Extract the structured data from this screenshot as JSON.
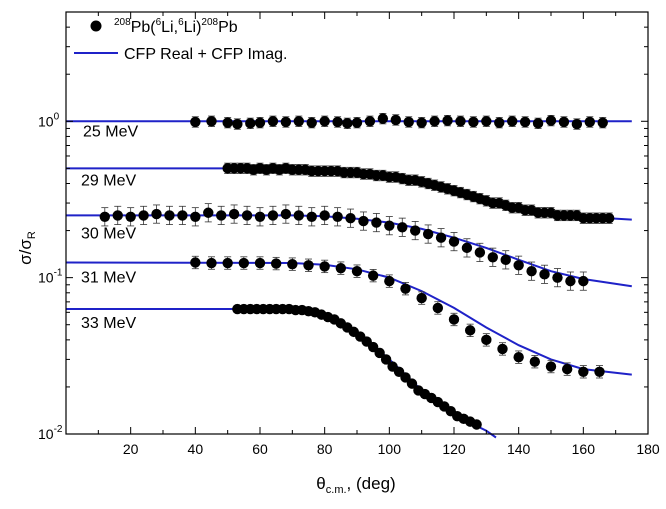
{
  "chart_data": {
    "type": "scatter",
    "xlabel": "θc.m., (deg)",
    "xlabel_main": "θ",
    "xlabel_sub": "c.m.",
    "xlabel_rest": ", (deg)",
    "ylabel_main": "σ/σ",
    "ylabel_sub": "R",
    "x_scale": "linear",
    "y_scale": "log",
    "xlim": [
      0,
      180
    ],
    "ylim": [
      0.01,
      5
    ],
    "x_ticks": [
      20,
      40,
      60,
      80,
      100,
      120,
      140,
      160,
      180
    ],
    "x_tick_labels": [
      "20",
      "40",
      "60",
      "80",
      "100",
      "120",
      "140",
      "160",
      "180"
    ],
    "y_tick_labels": [
      {
        "base": "10",
        "exp": "0",
        "value": 1
      },
      {
        "base": "10",
        "exp": "-1",
        "value": 0.1
      },
      {
        "base": "10",
        "exp": "-2",
        "value": 0.01
      }
    ],
    "legend": {
      "placement": "top-left",
      "data_label": {
        "sup1": "208",
        "a": "Pb(",
        "sup2": "6",
        "b": "Li,",
        "sup3": "6",
        "c": "Li)",
        "sup4": "208",
        "d": "Pb"
      },
      "fit_label": "CFP Real + CFP Imag."
    },
    "colors": {
      "data": "#000000",
      "fit": "#1f22c8",
      "errorbar": "#333333"
    },
    "series": [
      {
        "name": "25 MeV",
        "x": [
          40,
          45,
          50,
          53,
          57,
          60,
          64,
          68,
          72,
          76,
          80,
          84,
          87,
          90,
          94,
          98,
          102,
          106,
          110,
          114,
          118,
          122,
          126,
          130,
          134,
          138,
          142,
          146,
          150,
          154,
          158,
          162,
          166
        ],
        "y": [
          0.99,
          1.0,
          0.98,
          0.96,
          0.97,
          0.98,
          1.0,
          0.99,
          1.0,
          0.98,
          1.0,
          0.99,
          0.97,
          0.98,
          1.0,
          1.04,
          1.02,
          0.99,
          0.98,
          1.0,
          1.01,
          1.0,
          0.99,
          1.0,
          0.98,
          1.0,
          0.99,
          0.97,
          1.01,
          0.99,
          0.96,
          0.99,
          0.98
        ],
        "fit_x": [
          0,
          175
        ],
        "fit_y": [
          1.0,
          1.0
        ]
      },
      {
        "name": "29 MeV",
        "x": [
          50,
          52,
          54,
          56,
          58,
          60,
          62,
          64,
          66,
          68,
          70,
          72,
          74,
          76,
          78,
          80,
          82,
          84,
          86,
          88,
          90,
          92,
          94,
          96,
          98,
          100,
          102,
          104,
          106,
          108,
          110,
          112,
          114,
          116,
          118,
          120,
          122,
          124,
          126,
          128,
          130,
          132,
          134,
          136,
          138,
          140,
          142,
          144,
          146,
          148,
          150,
          152,
          154,
          156,
          158,
          160,
          162,
          164,
          166,
          168
        ],
        "y": [
          0.5,
          0.5,
          0.5,
          0.5,
          0.49,
          0.5,
          0.49,
          0.5,
          0.49,
          0.5,
          0.49,
          0.49,
          0.49,
          0.48,
          0.48,
          0.48,
          0.48,
          0.48,
          0.47,
          0.47,
          0.47,
          0.46,
          0.46,
          0.45,
          0.45,
          0.44,
          0.44,
          0.43,
          0.42,
          0.42,
          0.41,
          0.4,
          0.39,
          0.38,
          0.37,
          0.36,
          0.35,
          0.34,
          0.33,
          0.32,
          0.31,
          0.3,
          0.3,
          0.29,
          0.28,
          0.28,
          0.27,
          0.27,
          0.26,
          0.26,
          0.26,
          0.25,
          0.25,
          0.25,
          0.25,
          0.24,
          0.24,
          0.24,
          0.24,
          0.24
        ],
        "fit_x": [
          0,
          55,
          70,
          80,
          90,
          100,
          110,
          120,
          130,
          140,
          150,
          160,
          175
        ],
        "fit_y": [
          0.5,
          0.5,
          0.495,
          0.485,
          0.47,
          0.45,
          0.41,
          0.36,
          0.315,
          0.28,
          0.26,
          0.245,
          0.235
        ],
        "error": 0.05
      },
      {
        "name": "30 MeV",
        "x": [
          12,
          16,
          20,
          24,
          28,
          32,
          36,
          40,
          44,
          48,
          52,
          56,
          60,
          64,
          68,
          72,
          76,
          80,
          84,
          88,
          92,
          96,
          100,
          104,
          108,
          112,
          116,
          120,
          124,
          128,
          132,
          136,
          140,
          144,
          148,
          152,
          156,
          160
        ],
        "y": [
          0.245,
          0.25,
          0.245,
          0.25,
          0.255,
          0.25,
          0.25,
          0.245,
          0.26,
          0.25,
          0.255,
          0.25,
          0.245,
          0.25,
          0.255,
          0.25,
          0.245,
          0.25,
          0.245,
          0.24,
          0.23,
          0.225,
          0.215,
          0.21,
          0.2,
          0.19,
          0.18,
          0.17,
          0.155,
          0.145,
          0.135,
          0.13,
          0.12,
          0.11,
          0.105,
          0.1,
          0.095,
          0.095
        ],
        "fit_x": [
          0,
          70,
          80,
          90,
          100,
          110,
          120,
          130,
          140,
          150,
          160,
          175
        ],
        "fit_y": [
          0.25,
          0.25,
          0.247,
          0.238,
          0.225,
          0.205,
          0.18,
          0.155,
          0.13,
          0.11,
          0.098,
          0.088
        ],
        "error": 0.09
      },
      {
        "name": "31 MeV",
        "x": [
          40,
          45,
          50,
          55,
          60,
          65,
          70,
          75,
          80,
          85,
          90,
          95,
          100,
          105,
          110,
          115,
          120,
          125,
          130,
          135,
          140,
          145,
          150,
          155,
          160,
          165
        ],
        "y": [
          0.125,
          0.124,
          0.124,
          0.124,
          0.124,
          0.123,
          0.122,
          0.12,
          0.118,
          0.115,
          0.11,
          0.103,
          0.095,
          0.085,
          0.074,
          0.064,
          0.054,
          0.046,
          0.04,
          0.035,
          0.031,
          0.029,
          0.027,
          0.026,
          0.025,
          0.025
        ],
        "fit_x": [
          0,
          70,
          80,
          90,
          100,
          110,
          120,
          130,
          140,
          150,
          160,
          175
        ],
        "fit_y": [
          0.125,
          0.124,
          0.121,
          0.113,
          0.1,
          0.082,
          0.064,
          0.048,
          0.037,
          0.03,
          0.026,
          0.024
        ],
        "error": 0.06
      },
      {
        "name": "33 MeV",
        "x": [
          53,
          55,
          57,
          59,
          61,
          63,
          65,
          67,
          69,
          71,
          73,
          75,
          77,
          79,
          81,
          83,
          85,
          87,
          89,
          91,
          93,
          95,
          97,
          99,
          101,
          103,
          105,
          107,
          109,
          111,
          113,
          115,
          117,
          119,
          121,
          123,
          125,
          127
        ],
        "y": [
          0.063,
          0.063,
          0.063,
          0.063,
          0.063,
          0.063,
          0.063,
          0.063,
          0.063,
          0.062,
          0.062,
          0.061,
          0.06,
          0.058,
          0.056,
          0.054,
          0.051,
          0.048,
          0.045,
          0.042,
          0.039,
          0.036,
          0.033,
          0.03,
          0.027,
          0.025,
          0.023,
          0.021,
          0.019,
          0.018,
          0.017,
          0.016,
          0.015,
          0.014,
          0.013,
          0.0125,
          0.012,
          0.0115
        ],
        "fit_x": [
          0,
          60,
          70,
          75,
          80,
          85,
          90,
          95,
          100,
          105,
          110,
          115,
          120,
          125,
          130,
          133
        ],
        "fit_y": [
          0.063,
          0.063,
          0.063,
          0.061,
          0.057,
          0.051,
          0.044,
          0.037,
          0.03,
          0.024,
          0.019,
          0.0158,
          0.0135,
          0.0118,
          0.0105,
          0.0095
        ],
        "error": 0.03
      }
    ]
  }
}
